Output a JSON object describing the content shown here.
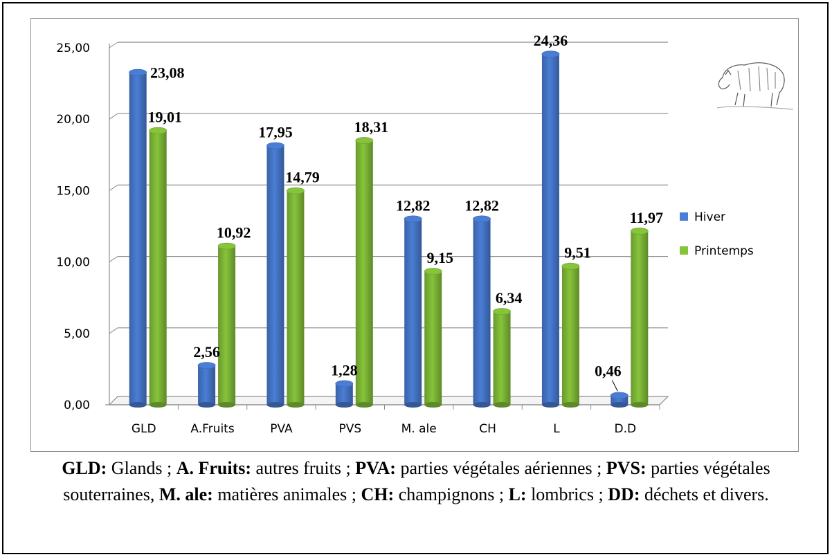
{
  "chart_data": {
    "type": "bar",
    "categories": [
      "GLD",
      "A.Fruits",
      "PVA",
      "PVS",
      "M. ale",
      "CH",
      "L",
      "D.D"
    ],
    "series": [
      {
        "name": "Hiver",
        "color": "#4a7ed6",
        "values": [
          23.08,
          2.56,
          17.95,
          1.28,
          12.82,
          12.82,
          24.36,
          0.46
        ],
        "labels": [
          "23,08",
          "2,56",
          "17,95",
          "1,28",
          "12,82",
          "12,82",
          "24,36",
          "0,46"
        ]
      },
      {
        "name": "Printemps",
        "color": "#86c43a",
        "values": [
          19.01,
          10.92,
          14.79,
          18.31,
          9.15,
          6.34,
          9.51,
          11.97
        ],
        "labels": [
          "19,01",
          "10,92",
          "14,79",
          "18,31",
          "9,15",
          "6,34",
          "9,51",
          "11,97"
        ]
      }
    ],
    "yticks": [
      "0,00",
      "5,00",
      "10,00",
      "15,00",
      "20,00",
      "25,00"
    ],
    "ylim": [
      0,
      25
    ],
    "grid": true,
    "legend_position": "right"
  },
  "caption": {
    "segments": [
      {
        "b": "GLD:",
        "t": " Glands ; "
      },
      {
        "b": "A. Fruits:",
        "t": " autres fruits ; "
      },
      {
        "b": "PVA:",
        "t": " parties végétales aériennes ; "
      },
      {
        "b": "PVS:",
        "t": " parties végétales souterraines, "
      },
      {
        "b": "M. ale:",
        "t": " matières animales ; "
      },
      {
        "b": "CH:",
        "t": " champignons ; "
      },
      {
        "b": "L:",
        "t": " lombrics ; "
      },
      {
        "b": "DD:",
        "t": " déchets et divers."
      }
    ]
  }
}
